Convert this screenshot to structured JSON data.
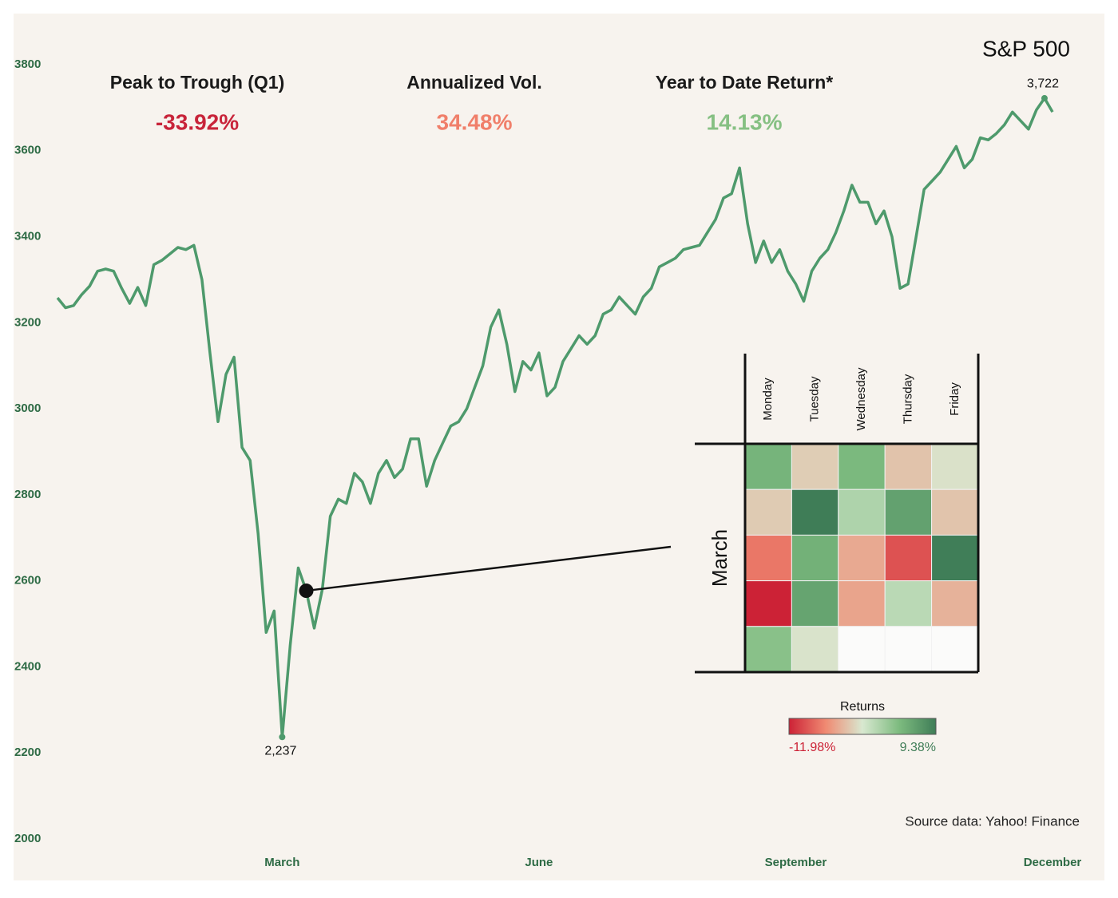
{
  "title": "S&P 500",
  "source": "Source data: Yahoo! Finance",
  "kpis": [
    {
      "label": "Peak to Trough (Q1)",
      "value": "-33.92%",
      "color": "#c8243a"
    },
    {
      "label": "Annualized Vol.",
      "value": "34.48%",
      "color": "#f07f6a"
    },
    {
      "label": "Year to Date Return*",
      "value": "14.13%",
      "color": "#86c083"
    }
  ],
  "chart_data": [
    {
      "type": "line",
      "color": "#4e9a6c",
      "highlight_index": 31,
      "ylim": [
        2000,
        3800
      ],
      "yticks": [
        2000,
        2200,
        2400,
        2600,
        2800,
        3000,
        3200,
        3400,
        3600,
        3800
      ],
      "categories": [
        null,
        null,
        null,
        null,
        null,
        null,
        null,
        null,
        null,
        null,
        null,
        null,
        null,
        null,
        null,
        null,
        null,
        null,
        null,
        null,
        null,
        null,
        null,
        null,
        null,
        null,
        null,
        null,
        "March",
        null,
        null,
        null,
        null,
        null,
        null,
        null,
        null,
        null,
        null,
        null,
        null,
        null,
        null,
        null,
        null,
        null,
        null,
        null,
        null,
        null,
        null,
        null,
        null,
        null,
        null,
        null,
        null,
        null,
        null,
        null,
        "June",
        null,
        null,
        null,
        null,
        null,
        null,
        null,
        null,
        null,
        null,
        null,
        null,
        null,
        null,
        null,
        null,
        null,
        null,
        null,
        null,
        null,
        null,
        null,
        null,
        null,
        null,
        null,
        null,
        null,
        null,
        null,
        "September",
        null,
        null,
        null,
        null,
        null,
        null,
        null,
        null,
        null,
        null,
        null,
        null,
        null,
        null,
        null,
        null,
        null,
        null,
        null,
        null,
        null,
        null,
        null,
        null,
        null,
        null,
        null,
        null,
        null,
        null,
        null,
        "December"
      ],
      "values": [
        3258,
        3235,
        3240,
        3265,
        3285,
        3320,
        3325,
        3320,
        3280,
        3245,
        3282,
        3240,
        3335,
        3345,
        3360,
        3375,
        3370,
        3380,
        3300,
        3130,
        2970,
        3080,
        3120,
        2910,
        2880,
        2710,
        2480,
        2530,
        2237,
        2450,
        2630,
        2577,
        2490,
        2580,
        2750,
        2790,
        2780,
        2850,
        2830,
        2780,
        2850,
        2880,
        2840,
        2860,
        2930,
        2930,
        2820,
        2880,
        2920,
        2960,
        2970,
        3000,
        3050,
        3100,
        3190,
        3230,
        3150,
        3040,
        3110,
        3090,
        3130,
        3030,
        3050,
        3110,
        3140,
        3170,
        3150,
        3170,
        3220,
        3230,
        3260,
        3240,
        3220,
        3260,
        3280,
        3330,
        3340,
        3350,
        3370,
        3375,
        3380,
        3410,
        3440,
        3490,
        3500,
        3560,
        3430,
        3340,
        3390,
        3340,
        3370,
        3320,
        3290,
        3250,
        3320,
        3350,
        3370,
        3410,
        3460,
        3520,
        3480,
        3480,
        3430,
        3460,
        3400,
        3280,
        3290,
        3400,
        3510,
        3530,
        3550,
        3580,
        3610,
        3560,
        3580,
        3630,
        3625,
        3640,
        3660,
        3690,
        3670,
        3650,
        3695,
        3722,
        3690
      ],
      "value_labels": [
        null,
        null,
        null,
        null,
        null,
        null,
        null,
        null,
        null,
        null,
        null,
        null,
        null,
        null,
        null,
        null,
        null,
        null,
        null,
        null,
        null,
        null,
        null,
        null,
        null,
        null,
        null,
        null,
        "2,237",
        null,
        null,
        null,
        null,
        null,
        null,
        null,
        null,
        null,
        null,
        null,
        null,
        null,
        null,
        null,
        null,
        null,
        null,
        null,
        null,
        null,
        null,
        null,
        null,
        null,
        null,
        null,
        null,
        null,
        null,
        null,
        null,
        null,
        null,
        null,
        null,
        null,
        null,
        null,
        null,
        null,
        null,
        null,
        null,
        null,
        null,
        null,
        null,
        null,
        null,
        null,
        null,
        null,
        null,
        null,
        null,
        null,
        null,
        null,
        null,
        null,
        null,
        null,
        null,
        null,
        null,
        null,
        null,
        null,
        null,
        null,
        null,
        null,
        null,
        null,
        null,
        null,
        null,
        null,
        null,
        null,
        null,
        null,
        null,
        null,
        null,
        null,
        null,
        null,
        null,
        null,
        null,
        null,
        null,
        "3,722",
        null
      ]
    },
    {
      "type": "heatmap",
      "y_label": "March",
      "columns": [
        "Monday",
        "Tuesday",
        "Wednesday",
        "Thursday",
        "Friday"
      ],
      "values": [
        [
          4.6,
          -2.81,
          4.22,
          -3.39,
          -1.71
        ],
        [
          -2.93,
          9.38,
          1.15,
          6.24,
          -3.37
        ],
        [
          -7.6,
          4.94,
          -4.89,
          -9.51,
          9.29
        ],
        [
          -11.98,
          6.0,
          -5.18,
          0.47,
          -4.34
        ],
        [
          3.35,
          -1.6,
          null,
          null,
          null
        ]
      ],
      "colorbar": {
        "title": "Returns",
        "colors": [
          "#cc2236",
          "#f08a72",
          "#d8e8d0",
          "#7dbb7f",
          "#3f7d57"
        ],
        "range": [
          -11.98,
          9.38
        ],
        "ticks": [
          {
            "value": -11.98,
            "label": "-11.98%"
          },
          {
            "value": 9.38,
            "label": "9.38%"
          }
        ]
      }
    }
  ]
}
